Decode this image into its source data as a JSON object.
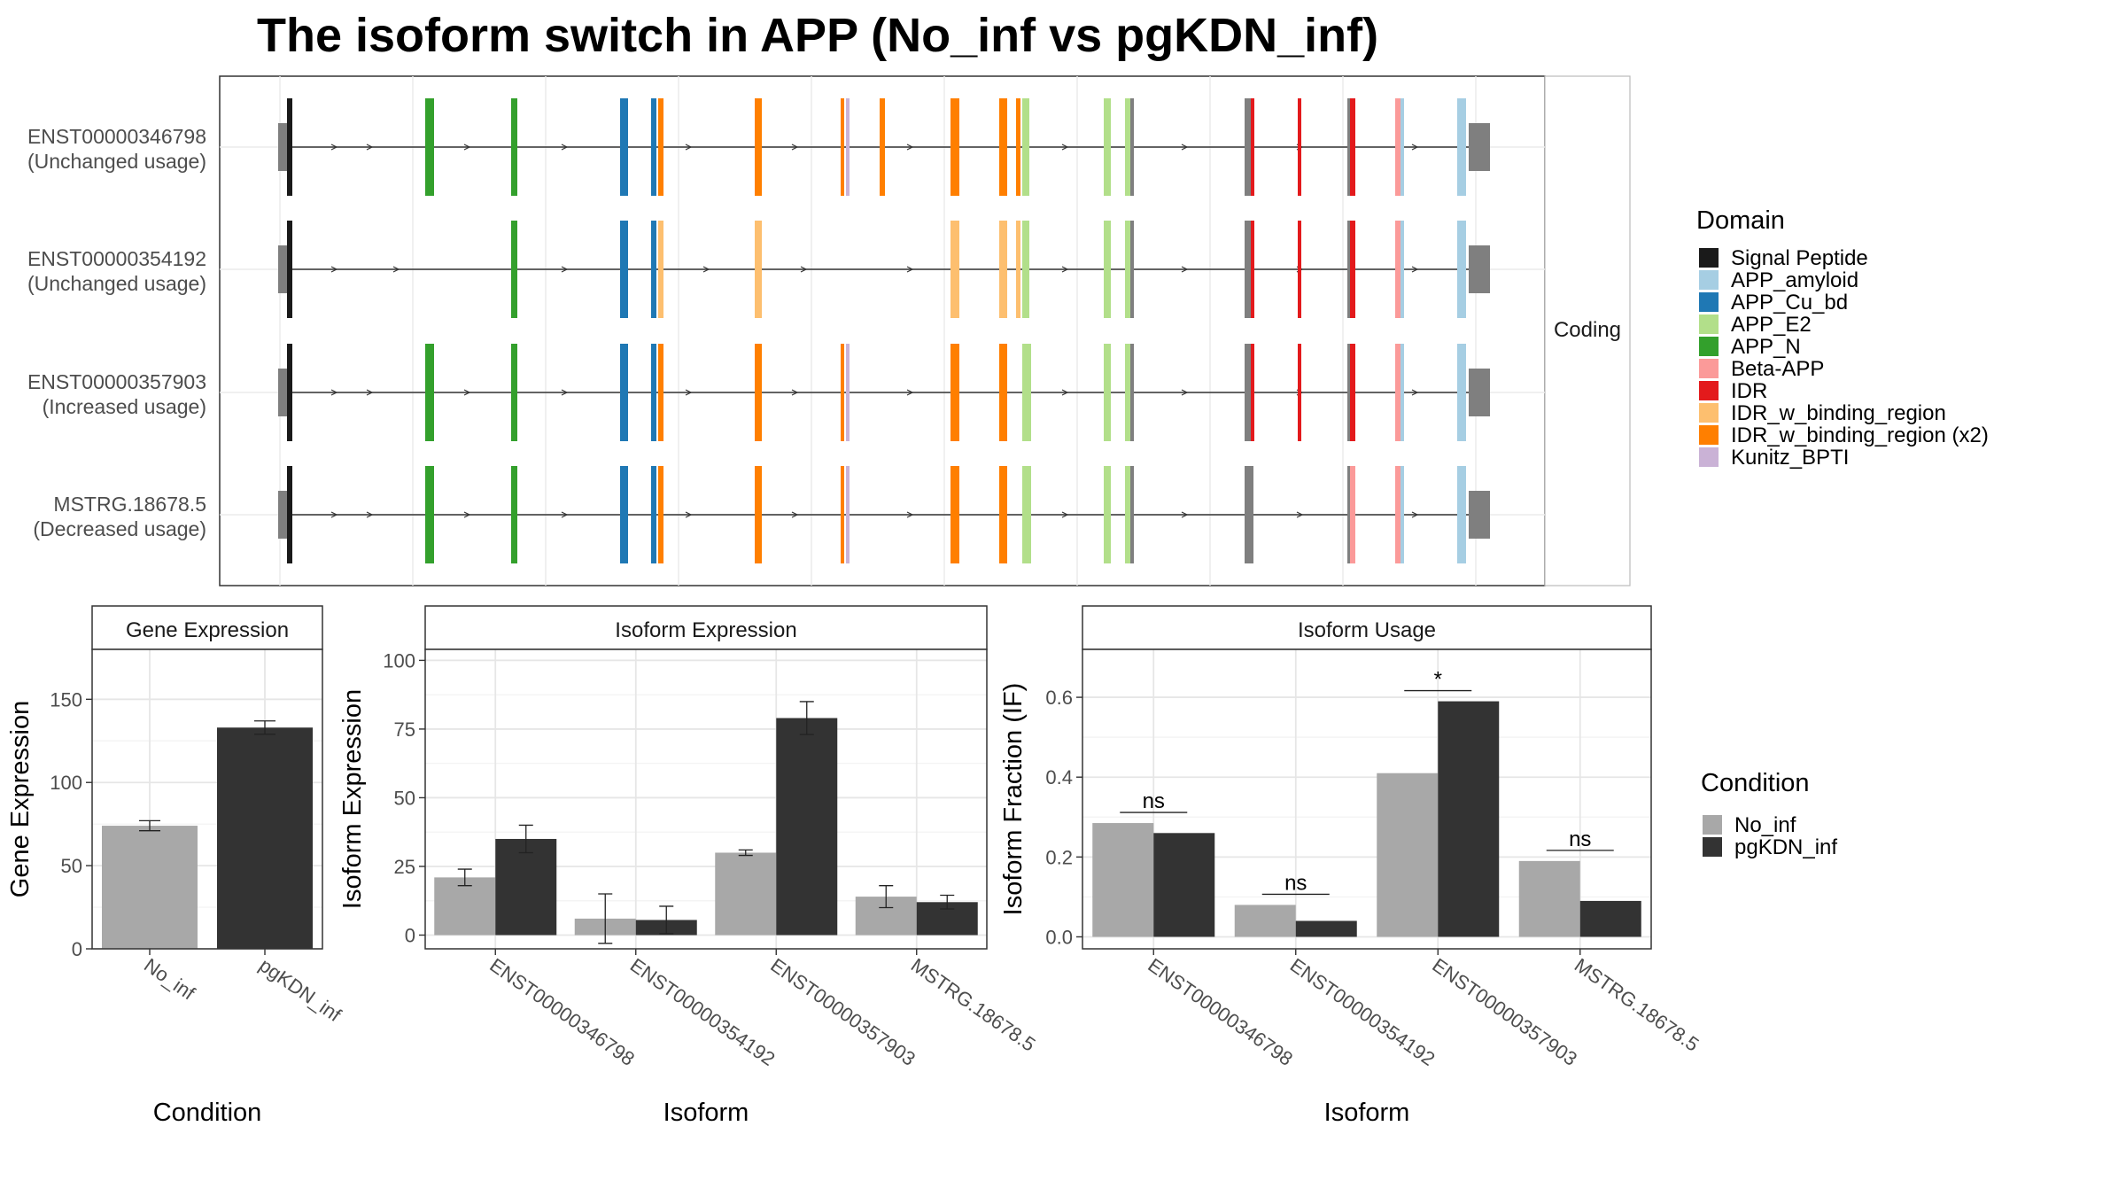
{
  "title": "The isoform switch in APP (No_inf vs pgKDN_inf)",
  "colors": {
    "Signal Peptide": "#1a1a1a",
    "APP_amyloid": "#a6cee3",
    "APP_Cu_bd": "#1f78b4",
    "APP_E2": "#b2df8a",
    "APP_N": "#33a02c",
    "Beta-APP": "#fb9a99",
    "IDR": "#e31a1c",
    "IDR_w_binding_region": "#fdbf6f",
    "IDR_w_binding_region (x2)": "#ff7f00",
    "Kunitz_BPTI": "#cab2d6",
    "utr": "#7f7f7f",
    "no_inf": "#a8a8a8",
    "pgkdn_inf": "#333333"
  },
  "structure": {
    "facet_label": "Coding",
    "isoforms": [
      {
        "name": "ENST00000346798",
        "usage": "(Unchanged usage)"
      },
      {
        "name": "ENST00000354192",
        "usage": "(Unchanged usage)"
      },
      {
        "name": "ENST00000357903",
        "usage": "(Increased usage)"
      },
      {
        "name": "MSTRG.18678.5",
        "usage": "(Decreased usage)"
      }
    ]
  },
  "legend_domain": {
    "title": "Domain",
    "items": [
      "Signal Peptide",
      "APP_amyloid",
      "APP_Cu_bd",
      "APP_E2",
      "APP_N",
      "Beta-APP",
      "IDR",
      "IDR_w_binding_region",
      "IDR_w_binding_region (x2)",
      "Kunitz_BPTI"
    ]
  },
  "legend_condition": {
    "title": "Condition",
    "items": [
      "No_inf",
      "pgKDN_inf"
    ]
  },
  "chart_data": [
    {
      "type": "bar",
      "title": "Gene Expression",
      "xlabel": "Condition",
      "ylabel": "Gene Expression",
      "categories": [
        "No_inf",
        "pgKDN_inf"
      ],
      "values": [
        74,
        133
      ],
      "errors": [
        3,
        4
      ],
      "ylim": [
        0,
        180
      ],
      "yticks": [
        0,
        50,
        100,
        150
      ],
      "grid": true
    },
    {
      "type": "bar",
      "title": "Isoform Expression",
      "xlabel": "Isoform",
      "ylabel": "Isoform Expression",
      "categories": [
        "ENST00000346798",
        "ENST00000354192",
        "ENST00000357903",
        "MSTRG.18678.5"
      ],
      "series": [
        {
          "name": "No_inf",
          "values": [
            21,
            6,
            30,
            14
          ],
          "errors": [
            3,
            9,
            1,
            4
          ]
        },
        {
          "name": "pgKDN_inf",
          "values": [
            35,
            5.5,
            79,
            12
          ],
          "errors": [
            5,
            5,
            6,
            2.5
          ]
        }
      ],
      "ylim": [
        -5,
        104
      ],
      "yticks": [
        0,
        25,
        50,
        75,
        100
      ],
      "grid": true
    },
    {
      "type": "bar",
      "title": "Isoform Usage",
      "xlabel": "Isoform",
      "ylabel": "Isoform Fraction (IF)",
      "categories": [
        "ENST00000346798",
        "ENST00000354192",
        "ENST00000357903",
        "MSTRG.18678.5"
      ],
      "series": [
        {
          "name": "No_inf",
          "values": [
            0.285,
            0.08,
            0.41,
            0.19
          ]
        },
        {
          "name": "pgKDN_inf",
          "values": [
            0.26,
            0.04,
            0.59,
            0.09
          ]
        }
      ],
      "significance": [
        "ns",
        "ns",
        "*",
        "ns"
      ],
      "ylim": [
        -0.03,
        0.72
      ],
      "yticks": [
        0.0,
        0.2,
        0.4,
        0.6
      ],
      "grid": true
    }
  ]
}
